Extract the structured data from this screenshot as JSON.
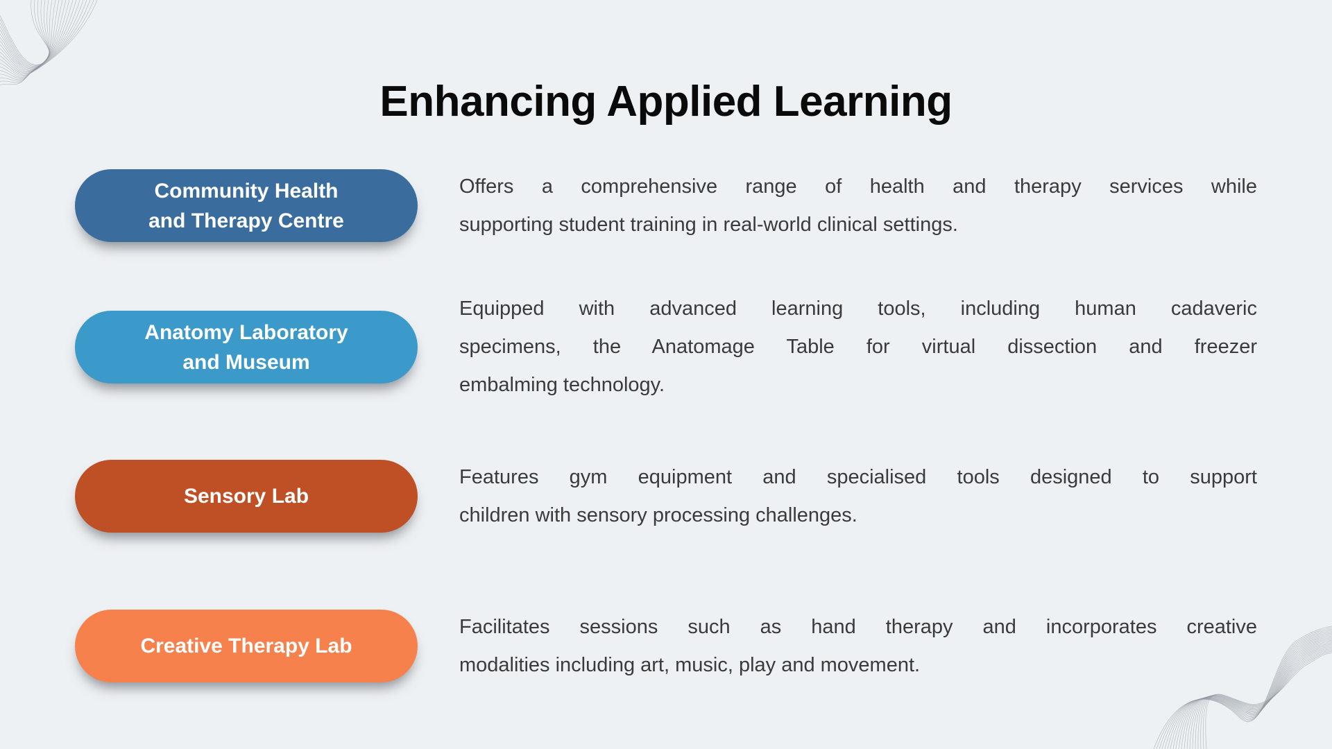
{
  "slide": {
    "title": "Enhancing Applied Learning",
    "colors": {
      "background": "#EEF1F4",
      "title_text": "#0A0A0A",
      "body_text": "#3A3A3A",
      "pill_text": "#FFFFFF",
      "pill_community_health": "#3A6D9E",
      "pill_anatomy_lab": "#3B9ACA",
      "pill_sensory_lab": "#BF4F24",
      "pill_creative_therapy": "#F6814C"
    },
    "features": [
      {
        "label": "Community Health and Therapy Centre",
        "label_lines": [
          "Community Health",
          "and Therapy Centre"
        ],
        "color": "#3A6D9E",
        "description": "Offers a comprehensive range of health and therapy services while supporting student training in real-world clinical settings.",
        "description_lines": [
          "Offers a comprehensive range of health and therapy services while",
          "supporting student training in real-world clinical settings."
        ]
      },
      {
        "label": "Anatomy Laboratory and Museum",
        "label_lines": [
          "Anatomy Laboratory",
          "and Museum"
        ],
        "color": "#3B9ACA",
        "description": "Equipped with advanced learning tools, including human cadaveric specimens, the Anatomage Table for virtual dissection and freezer embalming technology.",
        "description_lines": [
          "Equipped with advanced learning tools, including human cadaveric",
          "specimens, the Anatomage Table for virtual dissection and freezer",
          "embalming technology."
        ]
      },
      {
        "label": "Sensory Lab",
        "label_lines": [
          "Sensory Lab"
        ],
        "color": "#BF4F24",
        "description": "Features gym equipment and specialised tools designed to support children with sensory processing challenges.",
        "description_lines": [
          "Features gym equipment and specialised tools designed to support",
          "children with sensory processing challenges."
        ]
      },
      {
        "label": "Creative Therapy Lab",
        "label_lines": [
          "Creative Therapy Lab"
        ],
        "color": "#F6814C",
        "description": "Facilitates sessions such as hand therapy and incorporates creative modalities including art, music, play and movement.",
        "description_lines": [
          "Facilitates sessions such as hand therapy and incorporates creative",
          "modalities including art, music, play and movement."
        ]
      }
    ]
  }
}
